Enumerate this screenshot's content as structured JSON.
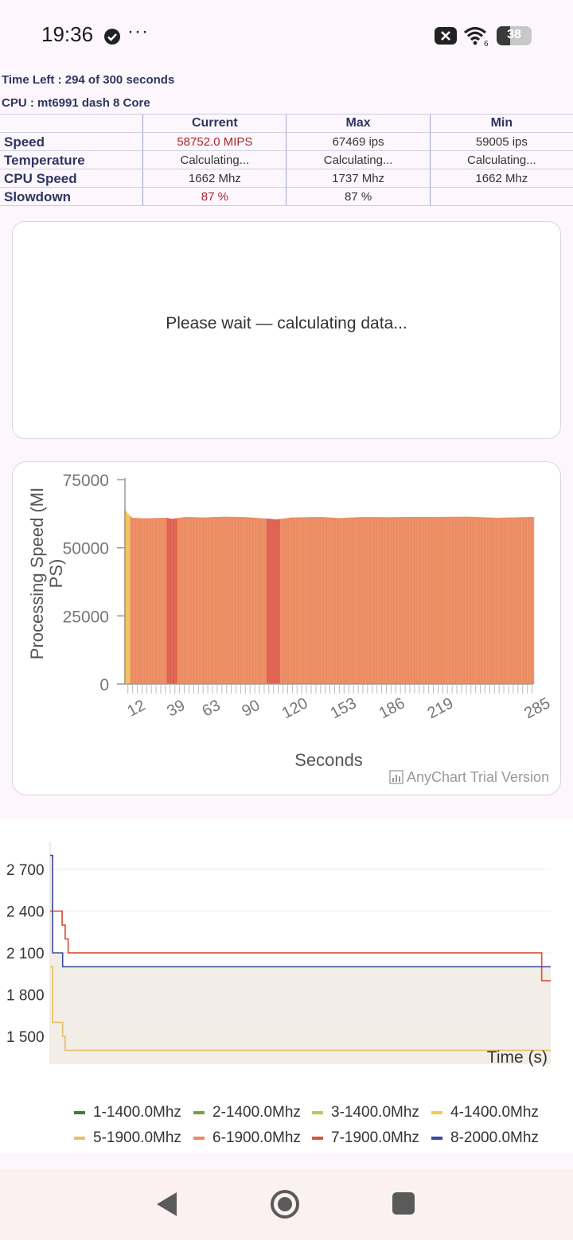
{
  "status_bar": {
    "time": "19:36",
    "more": "···",
    "battery": "38",
    "battery_level": 0.38,
    "wifi_badge": "6"
  },
  "header": {
    "time_left": "Time Left : 294 of 300 seconds",
    "cpu": "CPU : mt6991 dash 8 Core"
  },
  "stats_table": {
    "columns": [
      "Current",
      "Max",
      "Min"
    ],
    "rows": [
      {
        "label": "Speed",
        "current": "58752.0 MIPS",
        "max": "67469 ips",
        "min": "59005 ips"
      },
      {
        "label": "Temperature",
        "current": "Calculating...",
        "max": "Calculating...",
        "min": "Calculating..."
      },
      {
        "label": "CPU Speed",
        "current": "1662 Mhz",
        "max": "1737 Mhz",
        "min": "1662 Mhz"
      },
      {
        "label": "Slowdown",
        "current": "87 %",
        "max": "87 %",
        "min": ""
      }
    ]
  },
  "wait_panel": {
    "message": "Please wait — calculating data..."
  },
  "speed_chart": {
    "watermark": "AnyChart Trial Version",
    "colors": {
      "early": "#f2c35e",
      "main": "#ec8a60",
      "dip": "#de5e4d",
      "axis": "#999999"
    }
  },
  "freq_chart": {
    "colors": [
      "#3a7d3a",
      "#6fa33a",
      "#c3c64a",
      "#f2c94c",
      "#e8c06a",
      "#ec8a60",
      "#d9543f",
      "#3b4a9c"
    ]
  },
  "chart_data": [
    {
      "type": "bar",
      "title": "",
      "xlabel": "Seconds",
      "ylabel": "Processing Speed (MIPS)",
      "ylim": [
        0,
        75000
      ],
      "yticks": [
        0,
        25000,
        50000,
        75000
      ],
      "xticks": [
        12,
        39,
        63,
        90,
        120,
        153,
        186,
        219,
        285
      ],
      "x_range": [
        7,
        285
      ],
      "grid": false,
      "series_profile": [
        {
          "x": 7,
          "y": 64000
        },
        {
          "x": 9,
          "y": 62500
        },
        {
          "x": 12,
          "y": 61000
        },
        {
          "x": 20,
          "y": 60800
        },
        {
          "x": 35,
          "y": 61000
        },
        {
          "x": 39,
          "y": 60600
        },
        {
          "x": 48,
          "y": 61300
        },
        {
          "x": 60,
          "y": 61100
        },
        {
          "x": 75,
          "y": 61400
        },
        {
          "x": 90,
          "y": 61200
        },
        {
          "x": 104,
          "y": 60700
        },
        {
          "x": 110,
          "y": 60400
        },
        {
          "x": 120,
          "y": 61100
        },
        {
          "x": 140,
          "y": 61300
        },
        {
          "x": 153,
          "y": 60900
        },
        {
          "x": 170,
          "y": 61300
        },
        {
          "x": 186,
          "y": 61200
        },
        {
          "x": 200,
          "y": 61300
        },
        {
          "x": 219,
          "y": 61300
        },
        {
          "x": 240,
          "y": 61400
        },
        {
          "x": 260,
          "y": 61000
        },
        {
          "x": 285,
          "y": 61300
        }
      ]
    },
    {
      "type": "line",
      "title": "",
      "xlabel": "Time (s)",
      "ylabel": "",
      "ylim": [
        1300,
        2900
      ],
      "yticks": [
        1500,
        1800,
        2100,
        2400,
        2700
      ],
      "ytick_labels": [
        "1 500",
        "1 800",
        "2 100",
        "2 400",
        "2 700"
      ],
      "grid": true,
      "legend": "bottom",
      "series": [
        {
          "name": "1-1400.0Mhz",
          "points": []
        },
        {
          "name": "2-1400.0Mhz",
          "points": []
        },
        {
          "name": "3-1400.0Mhz",
          "points": []
        },
        {
          "name": "4-1400.0Mhz",
          "points": [
            [
              0,
              2000
            ],
            [
              0.5,
              1600
            ],
            [
              2,
              1600
            ],
            [
              2.5,
              1500
            ],
            [
              3,
              1400
            ],
            [
              100,
              1400
            ]
          ]
        },
        {
          "name": "5-1900.0Mhz",
          "points": [
            [
              0,
              2000
            ],
            [
              0.5,
              1600
            ],
            [
              2,
              1600
            ],
            [
              2.5,
              1500
            ],
            [
              3,
              1400
            ],
            [
              100,
              1400
            ]
          ]
        },
        {
          "name": "6-1900.0Mhz",
          "points": [
            [
              0,
              2400
            ],
            [
              2,
              2400
            ],
            [
              2.4,
              2300
            ],
            [
              3,
              2200
            ],
            [
              3.6,
              2100
            ],
            [
              97.8,
              2100
            ],
            [
              98.2,
              1900
            ],
            [
              100,
              1900
            ]
          ]
        },
        {
          "name": "7-1900.0Mhz",
          "points": [
            [
              0,
              2400
            ],
            [
              2,
              2400
            ],
            [
              2.4,
              2300
            ],
            [
              3,
              2200
            ],
            [
              3.6,
              2100
            ],
            [
              97.8,
              2100
            ],
            [
              98.2,
              1900
            ],
            [
              100,
              1900
            ]
          ]
        },
        {
          "name": "8-2000.0Mhz",
          "points": [
            [
              0,
              2800
            ],
            [
              0.5,
              2100
            ],
            [
              2,
              2100
            ],
            [
              2.5,
              2000
            ],
            [
              100,
              2000
            ]
          ]
        }
      ]
    }
  ],
  "nav": {
    "back": "back-icon",
    "home": "home-icon",
    "recents": "recents-icon"
  }
}
